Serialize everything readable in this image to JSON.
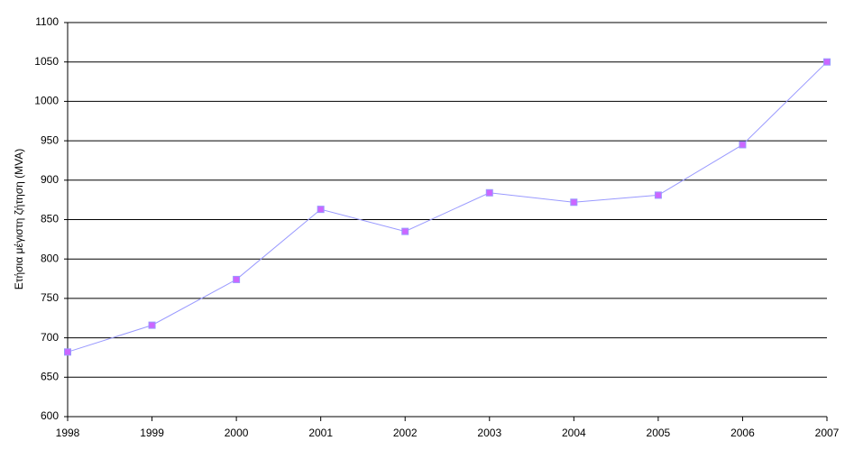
{
  "chart_data": {
    "type": "line",
    "y_label": "Ετήσια μέγιστη ζήτηση (MVA)",
    "x": [
      1998,
      1999,
      2000,
      2001,
      2002,
      2003,
      2004,
      2005,
      2006,
      2007
    ],
    "values": [
      682,
      716,
      774,
      863,
      835,
      884,
      872,
      881,
      945,
      1050
    ],
    "color": "#9999ff",
    "marker_color": "#cc66ff",
    "xlim": [
      1998,
      2007
    ],
    "xticks": [
      1998,
      1999,
      2000,
      2001,
      2002,
      2003,
      2004,
      2005,
      2006,
      2007
    ],
    "ylim": [
      600,
      1100
    ],
    "yticks": [
      600,
      650,
      700,
      750,
      800,
      850,
      900,
      950,
      1000,
      1050,
      1100
    ],
    "grid": true
  }
}
